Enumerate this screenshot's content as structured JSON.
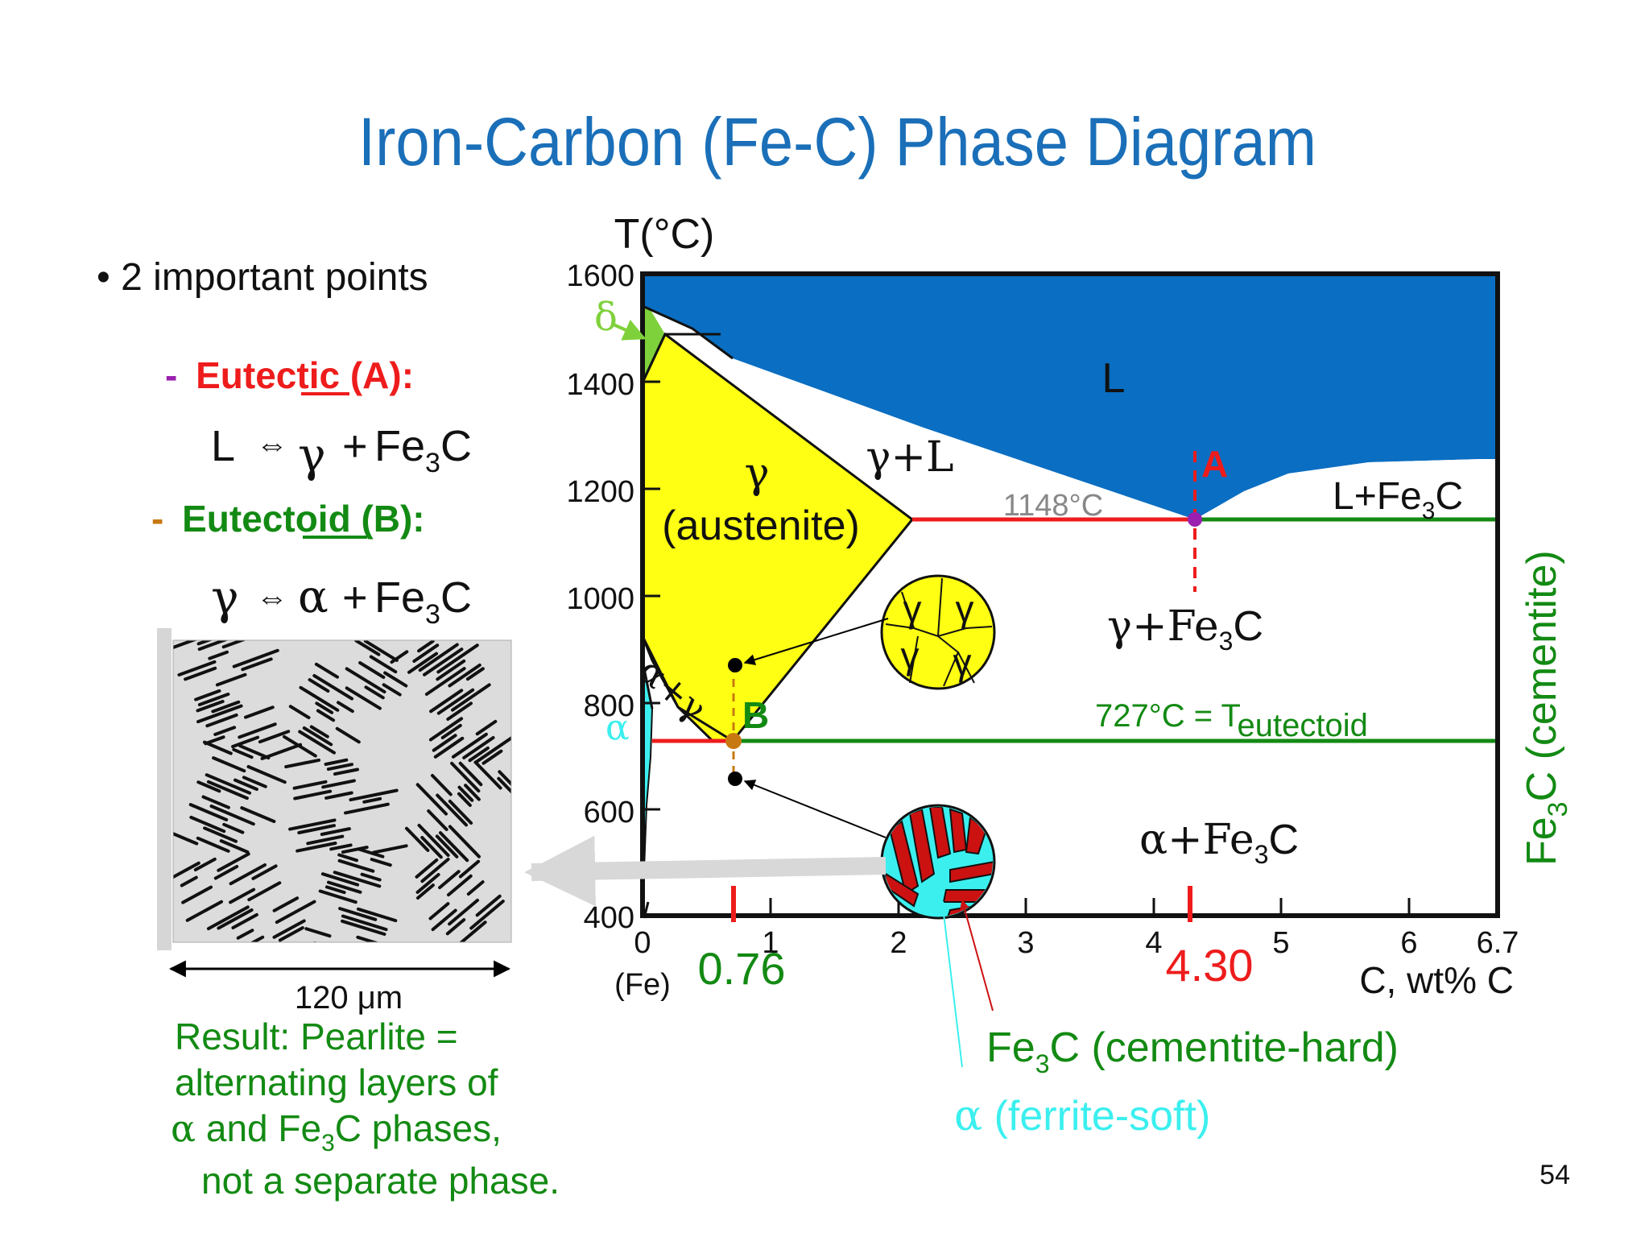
{
  "slide": {
    "title": "Iron-Carbon (Fe-C) Phase Diagram",
    "page_number": "54",
    "colors": {
      "title": "#1a6fb8",
      "liquid": "#0a6ec2",
      "austenite": "#ffff14",
      "delta": "#7fd13b",
      "ferrite": "#3cefef",
      "red": "#ee1c1c",
      "green": "#138a13",
      "orange": "#c87810",
      "purple": "#9b1fb0"
    }
  },
  "left": {
    "bullet": "• 2 important points",
    "eutectic": {
      "dash": "-",
      "pre": "Eutectic",
      "post": " (A):",
      "underline": "ic"
    },
    "eutectic_eq": {
      "lhs": "L",
      "arrow": "⇔",
      "gamma": "γ",
      "plus": "+",
      "fe": "Fe",
      "sub": "3",
      "c": "C"
    },
    "eutectoid": {
      "dash": "-",
      "pre": "Eutectoid",
      "post": " (B):",
      "underline": "oid"
    },
    "eutectoid_eq": {
      "gamma": "γ",
      "arrow": "⇔",
      "alpha": "α",
      "plus": "+",
      "fe": "Fe",
      "sub": "3",
      "c": "C"
    },
    "scale_label": "120 μm",
    "result": {
      "line1": "Result:  Pearlite =",
      "line2": "alternating layers of",
      "line3_alpha": "α",
      "line3_rest": " and Fe",
      "line3_sub": "3",
      "line3_end": "C phases,",
      "line4": "not a separate phase."
    }
  },
  "diagram": {
    "y_axis_title": "T(°C)",
    "x_axis_title": "C, wt% C",
    "x_axis_fe": "(Fe)",
    "y_ticks": [
      "1600",
      "1400",
      "1200",
      "1000",
      "800",
      "600",
      "400"
    ],
    "x_ticks": [
      "0",
      "1",
      "2",
      "3",
      "4",
      "5",
      "6",
      "6.7"
    ],
    "marks": {
      "b_comp": "0.76",
      "a_comp": "4.30"
    },
    "phase_labels": {
      "L": "L",
      "gamma": "γ",
      "austenite": "(austenite)",
      "gamma_L": "γ+L",
      "L_Fe3C_pre": "L+Fe",
      "L_Fe3C_sub": "3",
      "L_Fe3C_post": "C",
      "gamma_Fe3C_pre": "γ+Fe",
      "gamma_Fe3C_sub": "3",
      "gamma_Fe3C_post": "C",
      "alpha_Fe3C_pre": "α+Fe",
      "alpha_Fe3C_sub": "3",
      "alpha_Fe3C_post": "C",
      "alpha_gamma": "α+γ",
      "delta": "δ",
      "alpha": "α",
      "point_A": "A",
      "point_B": "B",
      "temp_1148": "1148°C",
      "temp_727_pre": "727°C = T",
      "temp_727_sub": "eutectoid",
      "cementite_pre": "Fe",
      "cementite_sub": "3",
      "cementite_post": "C (cementite)"
    },
    "micro_grains": [
      "γ",
      "γ",
      "γ",
      "γ"
    ],
    "callouts": {
      "cem_pre": "Fe",
      "cem_sub": "3",
      "cem_post": "C (cementite-hard)",
      "fer_alpha": "α",
      "fer_post": " (ferrite-soft)"
    }
  }
}
